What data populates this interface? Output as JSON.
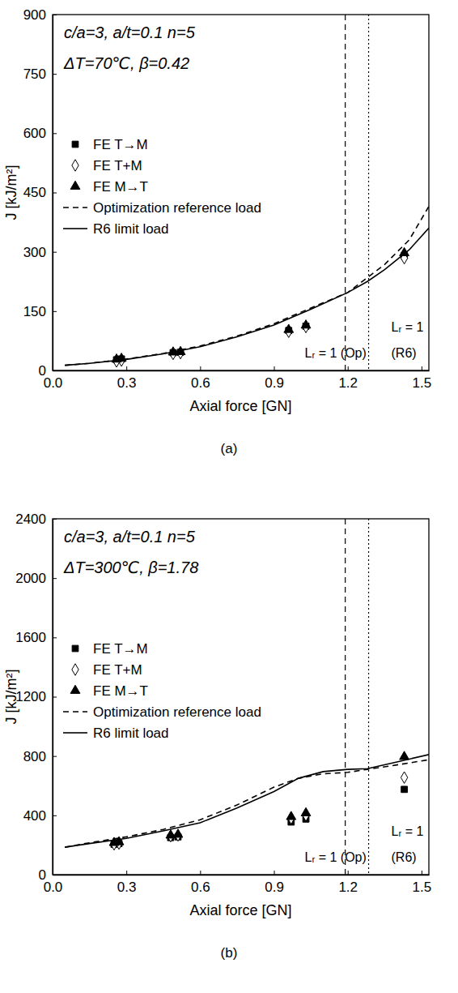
{
  "chart_data": [
    {
      "type": "line",
      "title": "(a)",
      "x_label": "Axial force [GN]",
      "y_label": "J [kJ/m²]",
      "annotations": [
        "c/a=3, a/t=0.1 n=5",
        "ΔT=70℃, β=0.42"
      ],
      "xlim": [
        0,
        1.53
      ],
      "ylim": [
        0,
        900
      ],
      "xticks": [
        {
          "value": 0,
          "label": "0.0"
        },
        0.3,
        0.6,
        0.9,
        1.2,
        1.5
      ],
      "yticks": [
        0,
        150,
        300,
        450,
        600,
        750,
        900
      ],
      "legend": "upper left",
      "vlines": [
        {
          "x": 1.19,
          "line_style": "dashed",
          "labels": [
            "Lᵣ = 1 (Op)"
          ]
        },
        {
          "x": 1.285,
          "line_style": "dotted",
          "labels": [
            "Lᵣ = 1",
            "(R6)"
          ]
        }
      ],
      "series": [
        {
          "name": "FE T→M",
          "type": "scatter",
          "marker": "square",
          "color": "#000000",
          "x": [
            0.26,
            0.28,
            0.49,
            0.52,
            0.96,
            1.03,
            1.43
          ],
          "values": [
            27,
            29,
            45,
            46,
            101,
            112,
            290
          ]
        },
        {
          "name": "FE T+M",
          "type": "scatter",
          "marker": "open-diamond",
          "color": "#000000",
          "x": [
            0.26,
            0.28,
            0.49,
            0.52,
            0.96,
            1.03,
            1.43
          ],
          "values": [
            23,
            25,
            42,
            44,
            98,
            110,
            284
          ]
        },
        {
          "name": "FE M→T",
          "type": "scatter",
          "marker": "triangle",
          "color": "#000000",
          "x": [
            0.26,
            0.28,
            0.49,
            0.52,
            0.96,
            1.03,
            1.43
          ],
          "values": [
            28,
            30,
            46,
            47,
            103,
            114,
            297
          ]
        },
        {
          "name": "Optimization reference load",
          "type": "line",
          "line_style": "dashed",
          "color": "#000000",
          "x": [
            0.05,
            0.15,
            0.3,
            0.45,
            0.6,
            0.75,
            0.9,
            1.05,
            1.2,
            1.28,
            1.35,
            1.45,
            1.53
          ],
          "values": [
            13,
            18,
            29,
            43,
            62,
            87,
            118,
            158,
            197,
            235,
            268,
            330,
            415
          ]
        },
        {
          "name": "R6 limit load",
          "type": "line",
          "line_style": "solid",
          "color": "#000000",
          "x": [
            0.05,
            0.15,
            0.3,
            0.45,
            0.6,
            0.75,
            0.9,
            1.05,
            1.2,
            1.28,
            1.35,
            1.45,
            1.53
          ],
          "values": [
            13,
            18,
            28,
            42,
            60,
            85,
            115,
            155,
            197,
            225,
            255,
            305,
            360
          ]
        }
      ]
    },
    {
      "type": "line",
      "title": "(b)",
      "x_label": "Axial force [GN]",
      "y_label": "J [kJ/m²]",
      "annotations": [
        "c/a=3, a/t=0.1 n=5",
        "ΔT=300℃, β=1.78"
      ],
      "xlim": [
        0,
        1.53
      ],
      "ylim": [
        0,
        2400
      ],
      "xticks": [
        {
          "value": 0,
          "label": "0.0"
        },
        0.3,
        0.6,
        0.9,
        1.2,
        1.5
      ],
      "yticks": [
        0,
        400,
        800,
        1200,
        1600,
        2000,
        2400
      ],
      "legend": "upper left",
      "vlines": [
        {
          "x": 1.19,
          "line_style": "dashed",
          "labels": [
            "Lᵣ = 1 (Op)"
          ]
        },
        {
          "x": 1.285,
          "line_style": "dotted",
          "labels": [
            "Lᵣ = 1",
            "(R6)"
          ]
        }
      ],
      "series": [
        {
          "name": "FE T→M",
          "type": "scatter",
          "marker": "square",
          "color": "#000000",
          "x": [
            0.25,
            0.27,
            0.48,
            0.51,
            0.97,
            1.03,
            1.43
          ],
          "values": [
            205,
            210,
            250,
            255,
            355,
            375,
            575
          ]
        },
        {
          "name": "FE T+M",
          "type": "scatter",
          "marker": "open-diamond",
          "color": "#000000",
          "x": [
            0.25,
            0.27,
            0.48,
            0.51,
            0.97,
            1.03,
            1.43
          ],
          "values": [
            205,
            210,
            260,
            265,
            380,
            400,
            655
          ]
        },
        {
          "name": "FE M→T",
          "type": "scatter",
          "marker": "triangle",
          "color": "#000000",
          "x": [
            0.25,
            0.27,
            0.48,
            0.51,
            0.97,
            1.03,
            1.43
          ],
          "values": [
            215,
            220,
            265,
            270,
            390,
            415,
            795
          ]
        },
        {
          "name": "Optimization reference load",
          "type": "line",
          "line_style": "dashed",
          "color": "#000000",
          "x": [
            0.05,
            0.15,
            0.3,
            0.45,
            0.6,
            0.75,
            0.9,
            1.0,
            1.1,
            1.2,
            1.28,
            1.4,
            1.53
          ],
          "values": [
            185,
            215,
            255,
            305,
            370,
            470,
            590,
            650,
            680,
            690,
            710,
            740,
            775
          ]
        },
        {
          "name": "R6 limit load",
          "type": "line",
          "line_style": "solid",
          "color": "#000000",
          "x": [
            0.05,
            0.15,
            0.3,
            0.45,
            0.6,
            0.75,
            0.9,
            1.0,
            1.1,
            1.2,
            1.28,
            1.4,
            1.53
          ],
          "values": [
            185,
            210,
            245,
            295,
            350,
            450,
            560,
            650,
            695,
            710,
            715,
            760,
            810
          ]
        }
      ]
    }
  ]
}
